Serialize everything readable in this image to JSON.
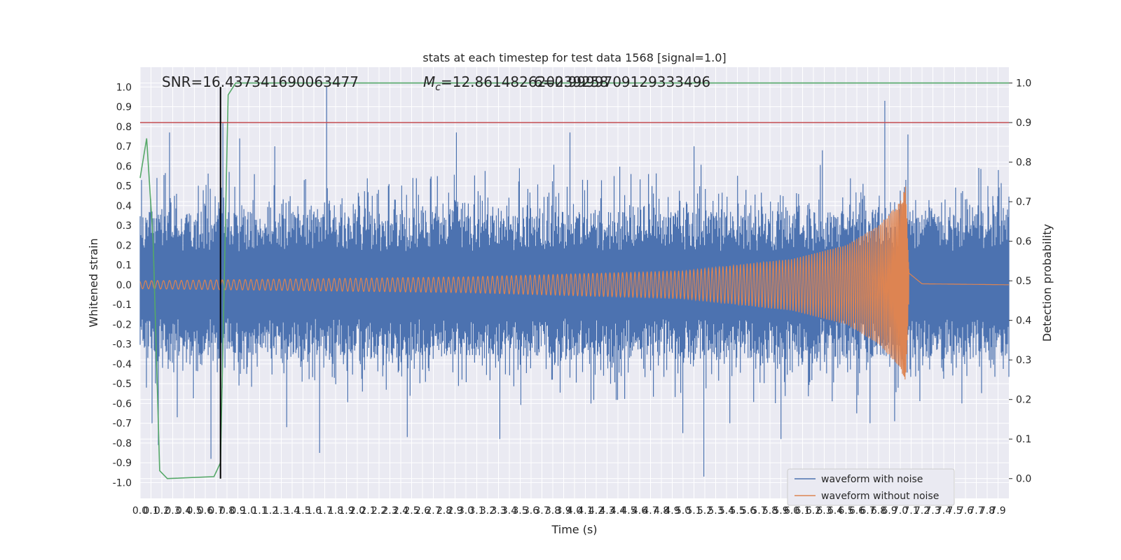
{
  "chart_data": {
    "type": "line",
    "title": "stats at each timestep for test data 1568 [signal=1.0]",
    "xlabel": "Time (s)",
    "ylabel": "Whitened strain",
    "y2label": "Detection probability",
    "xlim": [
      0.0,
      8.0
    ],
    "ylim": [
      -1.08,
      1.1
    ],
    "y2lim": [
      -0.05,
      1.04
    ],
    "x_ticks": [
      "0.0",
      "0.1",
      "0.2",
      "0.3",
      "0.4",
      "0.5",
      "0.6",
      "0.7",
      "0.8",
      "0.9",
      "1.0",
      "1.1",
      "1.2",
      "1.3",
      "1.4",
      "1.5",
      "1.6",
      "1.7",
      "1.8",
      "1.9",
      "2.0",
      "2.1",
      "2.2",
      "2.3",
      "2.4",
      "2.5",
      "2.6",
      "2.7",
      "2.8",
      "2.9",
      "3.0",
      "3.1",
      "3.2",
      "3.3",
      "3.4",
      "3.5",
      "3.6",
      "3.7",
      "3.8",
      "3.9",
      "4.0",
      "4.1",
      "4.2",
      "4.3",
      "4.4",
      "4.5",
      "4.6",
      "4.7",
      "4.8",
      "4.9",
      "5.0",
      "5.1",
      "5.2",
      "5.3",
      "5.4",
      "5.5",
      "5.6",
      "5.7",
      "5.8",
      "5.9",
      "6.0",
      "6.1",
      "6.2",
      "6.3",
      "6.4",
      "6.5",
      "6.6",
      "6.7",
      "6.8",
      "6.9",
      "7.0",
      "7.1",
      "7.2",
      "7.3",
      "7.4",
      "7.5",
      "7.6",
      "7.7",
      "7.8",
      "7.9"
    ],
    "y_ticks": [
      "1.0",
      "0.9",
      "0.8",
      "0.7",
      "0.6",
      "0.5",
      "0.4",
      "0.3",
      "0.2",
      "0.1",
      "0.0",
      "-0.1",
      "-0.2",
      "-0.3",
      "-0.4",
      "-0.5",
      "-0.6",
      "-0.7",
      "-0.8",
      "-0.9",
      "-1.0"
    ],
    "y2_ticks": [
      "1.0",
      "0.9",
      "0.8",
      "0.7",
      "0.6",
      "0.5",
      "0.4",
      "0.3",
      "0.2",
      "0.1",
      "0.0"
    ],
    "annotations": {
      "snr": "SNR=16.437341690063477",
      "mc_symbol": "M",
      "mc_sub": "c",
      "mc_value": "=12.861482620239258",
      "overlap": "6=0.9999709129333496"
    },
    "threshold": {
      "value": 0.9,
      "axis": "y2",
      "color": "#c44e52"
    },
    "vline": {
      "x": 0.74,
      "color": "#000000"
    },
    "legend": {
      "placement": "lower-right",
      "entries": [
        "waveform with noise",
        "waveform without noise"
      ]
    },
    "series": [
      {
        "name": "waveform with noise",
        "color": "#4c72b0",
        "axis": "y",
        "spikes": [
          [
            0.01,
            0.53
          ],
          [
            0.06,
            -0.52
          ],
          [
            0.11,
            -0.7
          ],
          [
            0.17,
            -0.81
          ],
          [
            0.27,
            0.77
          ],
          [
            0.34,
            -0.67
          ],
          [
            0.65,
            -0.88
          ],
          [
            0.76,
            0.82
          ],
          [
            0.92,
            0.74
          ],
          [
            1.24,
            0.7
          ],
          [
            1.35,
            -0.72
          ],
          [
            1.65,
            -0.85
          ],
          [
            1.72,
            1.0
          ],
          [
            2.05,
            -0.54
          ],
          [
            2.46,
            -0.77
          ],
          [
            2.91,
            0.77
          ],
          [
            3.31,
            -0.78
          ],
          [
            3.96,
            0.77
          ],
          [
            4.52,
            0.56
          ],
          [
            4.68,
            0.56
          ],
          [
            5.0,
            -0.75
          ],
          [
            5.1,
            0.7
          ],
          [
            5.19,
            -0.97
          ],
          [
            5.33,
            0.46
          ],
          [
            5.43,
            -0.7
          ],
          [
            5.9,
            -0.78
          ],
          [
            6.07,
            0.4
          ],
          [
            6.28,
            0.68
          ],
          [
            6.6,
            -0.65
          ],
          [
            6.72,
            -0.7
          ],
          [
            6.86,
            0.93
          ],
          [
            6.95,
            -0.69
          ],
          [
            7.07,
            0.76
          ],
          [
            7.57,
            -0.6
          ],
          [
            7.9,
            0.58
          ]
        ]
      },
      {
        "name": "waveform without noise",
        "color": "#dd8452",
        "axis": "y",
        "envelope": [
          [
            0.0,
            0.02
          ],
          [
            3.0,
            0.04
          ],
          [
            5.0,
            0.07
          ],
          [
            6.0,
            0.13
          ],
          [
            6.5,
            0.2
          ],
          [
            6.8,
            0.3
          ],
          [
            7.0,
            0.42
          ],
          [
            7.05,
            0.5
          ],
          [
            7.08,
            0.06
          ],
          [
            7.2,
            0.005
          ],
          [
            8.0,
            0.0
          ]
        ]
      },
      {
        "name": "",
        "color": "#55a868",
        "axis": "y2",
        "points": [
          [
            0.0,
            0.76
          ],
          [
            0.06,
            0.86
          ],
          [
            0.12,
            0.6
          ],
          [
            0.18,
            0.02
          ],
          [
            0.25,
            0.0
          ],
          [
            0.68,
            0.005
          ],
          [
            0.74,
            0.04
          ],
          [
            0.81,
            0.97
          ],
          [
            0.88,
            1.0
          ],
          [
            8.0,
            1.0
          ]
        ]
      }
    ]
  }
}
